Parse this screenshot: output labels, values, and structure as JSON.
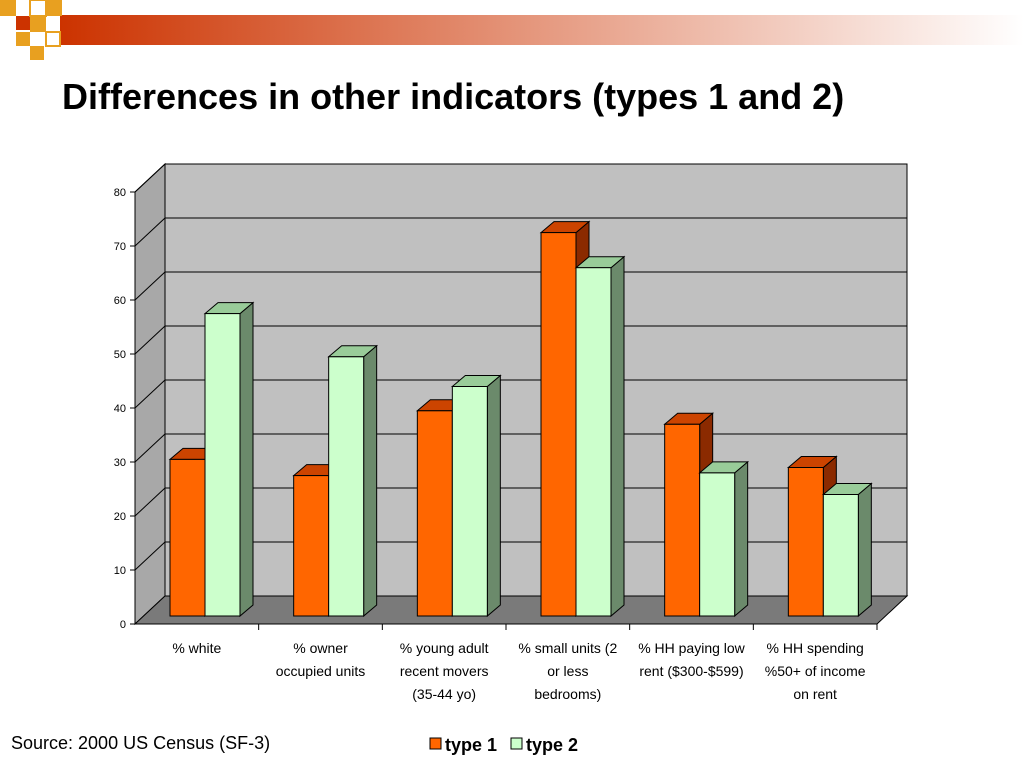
{
  "slide": {
    "title": "Differences in other indicators (types 1 and 2)",
    "source": "Source: 2000 US Census (SF-3)"
  },
  "colors": {
    "type1_face": "#ff6600",
    "type1_top": "#cc4400",
    "type1_side": "#8b2a00",
    "type2_face": "#ccffcc",
    "type2_top": "#99cc99",
    "type2_side": "#6b8a6b",
    "wall": "#c0c0c0",
    "floor": "#7a7a7a",
    "banner_start": "#cc3300",
    "banner_end": "#ffffff",
    "banner_squares": "#e8a020"
  },
  "chart_data": {
    "type": "bar",
    "title": "",
    "xlabel": "",
    "ylabel": "",
    "ylim": [
      0,
      80
    ],
    "yticks": [
      0,
      10,
      20,
      30,
      40,
      50,
      60,
      70,
      80
    ],
    "grid": true,
    "legend_position": "bottom",
    "categories": [
      [
        "% white"
      ],
      [
        "% owner",
        "occupied units"
      ],
      [
        "% young adult",
        "recent movers",
        "(35-44 yo)"
      ],
      [
        "% small units (2",
        "or less",
        "bedrooms)"
      ],
      [
        "% HH paying low",
        "rent ($300-$599)"
      ],
      [
        "% HH spending",
        "%50+ of income",
        "on rent"
      ]
    ],
    "series": [
      {
        "name": "type 1",
        "values": [
          29,
          26,
          38,
          71,
          35.5,
          27.5
        ]
      },
      {
        "name": "type 2",
        "values": [
          56,
          48,
          42.5,
          64.5,
          26.5,
          22.5
        ]
      }
    ]
  }
}
